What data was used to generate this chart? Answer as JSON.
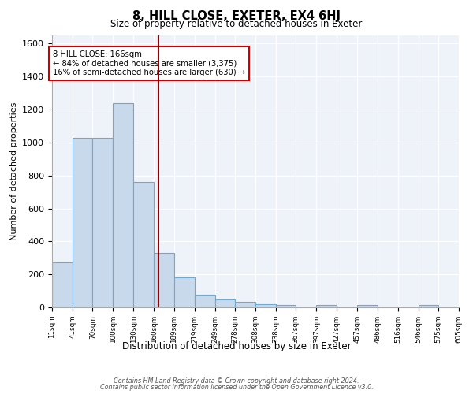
{
  "title": "8, HILL CLOSE, EXETER, EX4 6HJ",
  "subtitle": "Size of property relative to detached houses in Exeter",
  "xlabel": "Distribution of detached houses by size in Exeter",
  "ylabel": "Number of detached properties",
  "bins": [
    11,
    41,
    70,
    100,
    130,
    160,
    189,
    219,
    249,
    278,
    308,
    338,
    367,
    397,
    427,
    457,
    486,
    516,
    546,
    575,
    605
  ],
  "bar_heights": [
    275,
    1030,
    1030,
    1240,
    760,
    330,
    180,
    75,
    50,
    35,
    20,
    15,
    0,
    15,
    0,
    15,
    0,
    0,
    15,
    0
  ],
  "tick_labels": [
    "11sqm",
    "41sqm",
    "70sqm",
    "100sqm",
    "130sqm",
    "160sqm",
    "189sqm",
    "219sqm",
    "249sqm",
    "278sqm",
    "308sqm",
    "338sqm",
    "367sqm",
    "397sqm",
    "427sqm",
    "457sqm",
    "486sqm",
    "516sqm",
    "546sqm",
    "575sqm",
    "605sqm"
  ],
  "bar_color": "#c9d9ec",
  "bar_edge_color": "#6fa8d0",
  "property_line_x": 166,
  "property_line_color": "#8b0000",
  "annotation_line1": "8 HILL CLOSE: 166sqm",
  "annotation_line2": "← 84% of detached houses are smaller (3,375)",
  "annotation_line3": "16% of semi-detached houses are larger (630) →",
  "ylim": [
    0,
    1650
  ],
  "yticks": [
    0,
    200,
    400,
    600,
    800,
    1000,
    1200,
    1400,
    1600
  ],
  "background_color": "#eef3fa",
  "grid_color": "#ffffff",
  "footnote_line1": "Contains HM Land Registry data © Crown copyright and database right 2024.",
  "footnote_line2": "Contains public sector information licensed under the Open Government Licence v3.0."
}
